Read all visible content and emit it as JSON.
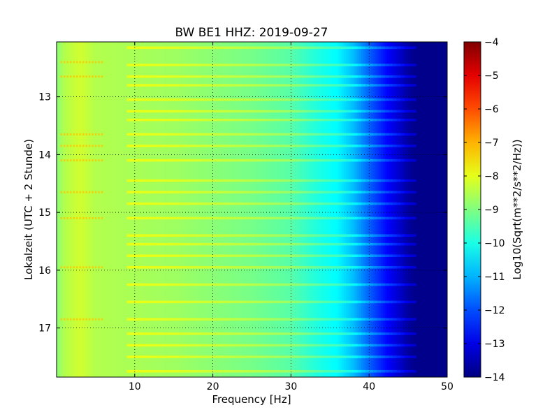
{
  "chart_data": {
    "type": "heatmap",
    "title": "BW BE1 HHZ: 2019-09-27",
    "xlabel": "Frequency [Hz]",
    "ylabel": "Lokalzeit (UTC + 2 Stunde)",
    "xlim": [
      0,
      50
    ],
    "ylim": [
      17.85,
      12.05
    ],
    "y_axis_inverted": true,
    "x_ticks": [
      10,
      20,
      30,
      40,
      50
    ],
    "y_ticks": [
      13,
      14,
      15,
      16,
      17
    ],
    "grid": true,
    "colormap": "jet",
    "colorbar": {
      "label": "Log10(Sqrt(m**2/s**2/Hz))",
      "range": [
        -14,
        -4
      ],
      "ticks": [
        -4,
        -5,
        -6,
        -7,
        -8,
        -9,
        -10,
        -11,
        -12,
        -13,
        -14
      ]
    },
    "frequency_profile": {
      "frequency_hz": [
        0,
        1,
        3,
        5,
        10,
        15,
        20,
        25,
        30,
        33,
        36,
        38,
        40,
        42,
        44,
        45,
        46,
        50
      ],
      "log_level": [
        -8.9,
        -8.5,
        -8.2,
        -8.5,
        -8.6,
        -8.7,
        -8.9,
        -9.1,
        -9.4,
        -9.9,
        -10.3,
        -10.9,
        -11.8,
        -12.6,
        -13.3,
        -13.7,
        -13.9,
        -13.9
      ]
    },
    "bright_bands_hour": [
      12.15,
      12.45,
      12.65,
      12.8,
      13.05,
      13.25,
      13.4,
      13.65,
      13.85,
      14.1,
      14.45,
      14.65,
      14.85,
      15.1,
      15.4,
      15.55,
      15.75,
      15.95,
      16.25,
      16.55,
      16.85,
      17.1,
      17.3,
      17.5,
      17.75
    ],
    "scatter_band_hours": [
      12.4,
      12.65,
      13.65,
      13.85,
      14.1,
      14.65,
      15.1,
      15.95,
      16.85
    ]
  }
}
